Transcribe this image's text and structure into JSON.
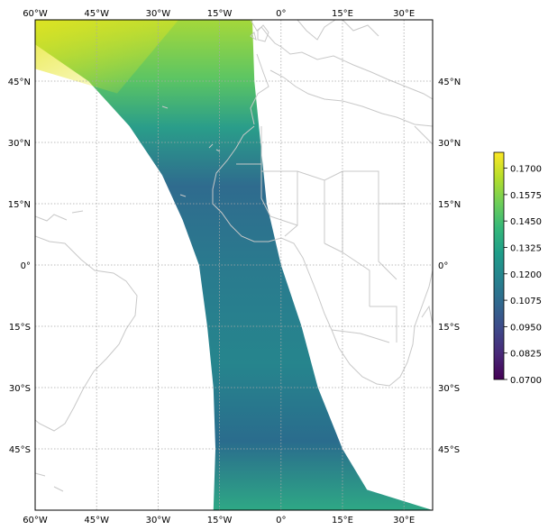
{
  "map": {
    "extent": {
      "lon_min": -60,
      "lon_max": 37,
      "lat_min": -60,
      "lat_max": 60
    },
    "grid": "dotted",
    "lon_ticks": [
      {
        "value": -60,
        "label": "60°W"
      },
      {
        "value": -45,
        "label": "45°W"
      },
      {
        "value": -30,
        "label": "30°W"
      },
      {
        "value": -15,
        "label": "15°W"
      },
      {
        "value": 0,
        "label": "0°"
      },
      {
        "value": 15,
        "label": "15°E"
      },
      {
        "value": 30,
        "label": "30°E"
      }
    ],
    "lat_ticks": [
      {
        "value": 45,
        "label": "45°N"
      },
      {
        "value": 30,
        "label": "30°N"
      },
      {
        "value": 15,
        "label": "15°N"
      },
      {
        "value": 0,
        "label": "0°"
      },
      {
        "value": -15,
        "label": "15°S"
      },
      {
        "value": -30,
        "label": "30°S"
      },
      {
        "value": -45,
        "label": "45°S"
      }
    ],
    "swath": {
      "left_edge": [
        [
          -60,
          54
        ],
        [
          -47,
          45
        ],
        [
          -37,
          34
        ],
        [
          -29,
          22
        ],
        [
          -24,
          11
        ],
        [
          -20,
          0
        ],
        [
          -18,
          -15
        ],
        [
          -16.5,
          -30
        ],
        [
          -16,
          -45
        ],
        [
          -16.5,
          -60
        ]
      ],
      "right_edge": [
        [
          -7,
          60
        ],
        [
          -6.5,
          45
        ],
        [
          -5,
          30
        ],
        [
          -3.5,
          15
        ],
        [
          0,
          0
        ],
        [
          5,
          -15
        ],
        [
          9,
          -30
        ],
        [
          15,
          -45
        ],
        [
          21,
          -55
        ],
        [
          37,
          -60
        ]
      ]
    }
  },
  "colorbar": {
    "colormap": "viridis",
    "range": [
      0.07,
      0.1775
    ],
    "tick_labels": [
      "0.1700",
      "0.1575",
      "0.1450",
      "0.1325",
      "0.1200",
      "0.1075",
      "0.0950",
      "0.0825",
      "0.0700"
    ],
    "colors": [
      "#440154",
      "#482878",
      "#3e4989",
      "#31688e",
      "#26828e",
      "#1f9e89",
      "#35b779",
      "#6ece58",
      "#b5de2b",
      "#fde725"
    ]
  },
  "colors": {
    "coastline": "#c8c8c8",
    "grid": "#a8a8a8",
    "axes": "#000000"
  }
}
